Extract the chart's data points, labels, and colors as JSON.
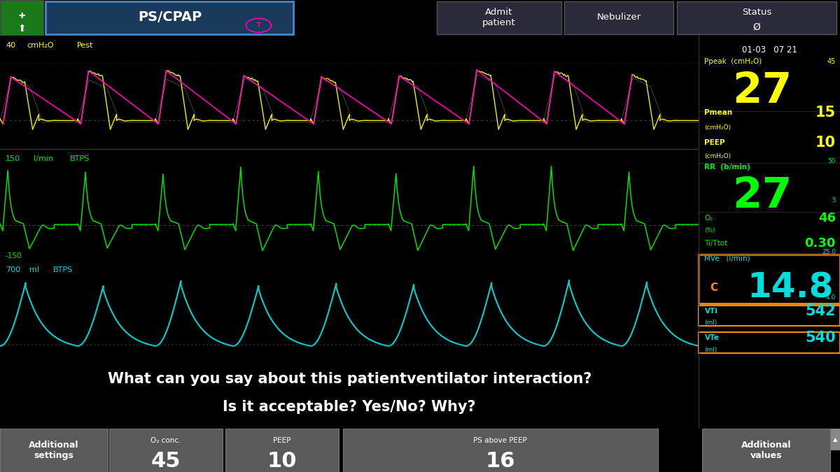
{
  "bg_color": "#000000",
  "title": "PS/CPAP",
  "datetime": "01-03   07 21",
  "top_label_40": "40",
  "top_label_unit": "cmH₂O",
  "top_label_pest": "Pest",
  "mid_label_150": "150",
  "mid_label_unit": "l/min",
  "mid_label_btps": "BTPS",
  "neg_label": "-150",
  "bot_label_700": "700",
  "bot_label_unit": "ml",
  "bot_label_btps": "BTPS",
  "pressure_color": "#ffff00",
  "flow_color": "#00ee00",
  "volume_color": "#00dddd",
  "pink_color": "#ff00bb",
  "gray_color": "#888888",
  "dark_gray": "#333333",
  "Ppeak_label": "Ppeak  (cmH₂O)",
  "Ppeak_value": "27",
  "Ppeak_value_color": "#ffff00",
  "Ppeak_scale": "45",
  "Pmean_label": "Pmean",
  "Pmean_sublabel": "(cmH₂O)",
  "Pmean_value": "15",
  "Pmean_value_color": "#ffff00",
  "PEEP_label": "PEEP",
  "PEEP_sublabel": "(cmH₂O)",
  "PEEP_value": "10",
  "PEEP_value_color": "#ffff00",
  "RR_label": "RR  (b/min)",
  "RR_value": "27",
  "RR_value_color": "#00ff00",
  "RR_scale_top": "50",
  "RR_scale_bot": "5",
  "O2_label": "O₂",
  "O2_sublabel": "(%)",
  "O2_value": "46",
  "O2_value_color": "#00ff00",
  "TiTtot_label": "Ti/Ttot",
  "TiTtot_value": "0.30",
  "TiTtot_value_color": "#00ff00",
  "MVe_label": "MVe   (l/min)",
  "MVe_C": "C",
  "MVe_value": "14.8",
  "MVe_value_color": "#00dddd",
  "MVe_scale_top": "25.0",
  "MVe_scale_bot": "4.0",
  "VTi_label": "VTi",
  "VTi_sublabel": "(ml)",
  "VTi_value": "542",
  "VTi_value_color": "#00dddd",
  "VTe_label": "VTe",
  "VTe_sublabel": "(ml)",
  "VTe_value": "540",
  "VTe_value_color": "#00dddd",
  "question_line1": "What can you say about this patientventilator interaction?",
  "question_line2": "Is it acceptable? Yes/No? Why?",
  "question_color": "#ffffff",
  "orange_box_color": "#ff8c00",
  "header_green": "#1a7a1a",
  "header_blue_bg": "#1a3a5c",
  "header_blue_edge": "#4488cc",
  "header_dark": "#1e1e2e",
  "bottom_bg": "#4a4a4a",
  "bottom_section_bg": "#5a5a5a",
  "n_cycles_pressure": 9,
  "n_cycles_flow": 9,
  "n_cycles_volume": 9
}
